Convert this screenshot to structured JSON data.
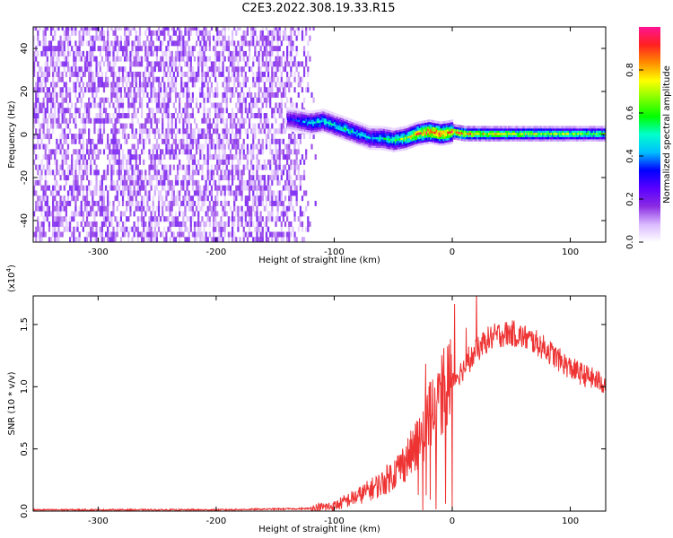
{
  "title": "C2E3.2022.308.19.33.R15",
  "chart_data": [
    {
      "type": "heatmap",
      "xlabel": "Height of straight line (km)",
      "ylabel": "Frequency (Hz)",
      "xlim": [
        -355,
        130
      ],
      "ylim": [
        -50,
        50
      ],
      "xticks": [
        -300,
        -200,
        -100,
        0,
        100
      ],
      "yticks": [
        -40,
        -20,
        0,
        20,
        40
      ],
      "colorbar": {
        "label": "Normalized spectral amplitude",
        "range": [
          0,
          1
        ],
        "ticks": [
          "0.0",
          "0.2",
          "0.4",
          "0.6",
          "0.8"
        ],
        "tick_values": [
          0,
          0.2,
          0.4,
          0.6,
          0.8
        ],
        "colors": [
          "#ffffff",
          "#d9b8ff",
          "#8a2be2",
          "#5a00ff",
          "#0000ff",
          "#00bfff",
          "#00ffcc",
          "#00ff00",
          "#7fff00",
          "#ffff00",
          "#ff8c00",
          "#ff2020",
          "#ff1493"
        ]
      },
      "noise_region": {
        "x_from": -355,
        "x_to": -115,
        "y_from": -50,
        "y_to": 50,
        "amplitude": 0.15
      },
      "ridge": {
        "x": [
          -140,
          -130,
          -120,
          -110,
          -100,
          -90,
          -80,
          -70,
          -60,
          -50,
          -40,
          -30,
          -20,
          -10,
          0,
          10,
          20,
          40,
          60,
          80,
          100,
          120,
          130
        ],
        "y": [
          7,
          6,
          5,
          6,
          4,
          2,
          0,
          -2,
          -2,
          -3,
          -2,
          0,
          1,
          0,
          1,
          0,
          0,
          0,
          0,
          0,
          0,
          0,
          0
        ],
        "amplitude": [
          0.3,
          0.4,
          0.5,
          0.55,
          0.5,
          0.55,
          0.5,
          0.45,
          0.55,
          0.6,
          0.7,
          0.9,
          1.0,
          1.0,
          0.95,
          0.9,
          0.85,
          0.8,
          0.75,
          0.75,
          0.7,
          0.7,
          0.7
        ]
      }
    },
    {
      "type": "line",
      "xlabel": "Height of straight line (km)",
      "ylabel": "SNR (10 * v/v)",
      "scale_label": "(x10",
      "scale_exponent": "4",
      "scale_suffix": ")",
      "xlim": [
        -355,
        130
      ],
      "ylim": [
        0,
        1.73
      ],
      "xticks": [
        -300,
        -200,
        -100,
        0,
        100
      ],
      "yticks": [
        "0.0",
        "0.5",
        "1.0",
        "1.5"
      ],
      "ytick_values": [
        0,
        0.5,
        1.0,
        1.5
      ],
      "series": [
        {
          "color": "#ee3333",
          "x": [
            -355,
            -300,
            -200,
            -120,
            -100,
            -80,
            -60,
            -50,
            -40,
            -30,
            -20,
            -10,
            -5,
            0,
            10,
            20,
            30,
            40,
            50,
            60,
            70,
            80,
            90,
            100,
            110,
            120,
            130
          ],
          "y": [
            0.01,
            0.01,
            0.01,
            0.02,
            0.04,
            0.12,
            0.22,
            0.3,
            0.4,
            0.52,
            0.75,
            0.9,
            1.0,
            1.05,
            1.15,
            1.28,
            1.38,
            1.42,
            1.43,
            1.4,
            1.36,
            1.3,
            1.22,
            1.15,
            1.1,
            1.06,
            1.02
          ]
        }
      ]
    }
  ]
}
